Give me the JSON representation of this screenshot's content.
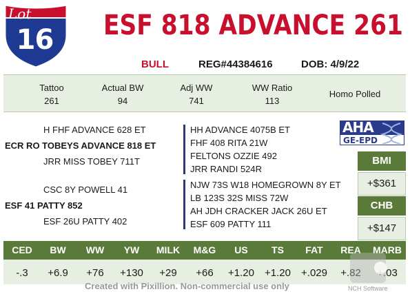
{
  "lot": {
    "word": "Lot",
    "number": "16"
  },
  "animal": {
    "name": "ESF 818 ADVANCE 261",
    "sex": "BULL",
    "reg": "REG#44384616",
    "dob": "DOB: 4/9/22"
  },
  "stats": [
    {
      "label": "Tattoo",
      "value": "261"
    },
    {
      "label": "Actual BW",
      "value": "94"
    },
    {
      "label": "Adj WW",
      "value": "741"
    },
    {
      "label": "WW Ratio",
      "value": "113"
    },
    {
      "label": "Homo Polled",
      "value": ""
    }
  ],
  "pedigree": {
    "sire": "ECR RO TOBEYS ADVANCE 818 ET",
    "sire_sire": "H FHF ADVANCE 628 ET",
    "sire_dam": "JRR MISS TOBEY 711T",
    "dam": "ESF 41 PATTY 852",
    "dam_sire": "CSC 8Y POWELL 41",
    "dam_dam": "ESF 26U PATTY 402",
    "ss_lines": [
      "HH ADVANCE 4075B ET",
      "FHF 408 RITA 21W",
      "FELTONS OZZIE 492",
      "JRR RANDI 524R"
    ],
    "ds_lines": [
      "NJW 73S W18 HOMEGROWN 8Y ET",
      "LB 123S 32S MISS 72W",
      "AH JDH CRACKER JACK 26U ET",
      "ESF 609 PATTY 111"
    ]
  },
  "logo": {
    "top": "AHA",
    "bottom": "GE-EPD"
  },
  "indexes": [
    {
      "label": "BMI",
      "value": "+$361"
    },
    {
      "label": "CHB",
      "value": "+$147"
    }
  ],
  "epd": {
    "headers": [
      "CED",
      "BW",
      "WW",
      "YW",
      "MILK",
      "M&G",
      "US",
      "TS",
      "FAT",
      "REA",
      "MARB"
    ],
    "values": [
      "-.3",
      "+6.9",
      "+76",
      "+130",
      "+29",
      "+66",
      "+1.20",
      "+1.20",
      "+.029",
      "+.82",
      "+.03"
    ]
  },
  "watermark": "Created with Pixillion. Non-commercial use only",
  "watermark2": "NCH Software",
  "colors": {
    "red": "#c8102e",
    "green": "#5a7a3a",
    "light_green": "#e6efe1",
    "navy": "#2a3a8c"
  }
}
